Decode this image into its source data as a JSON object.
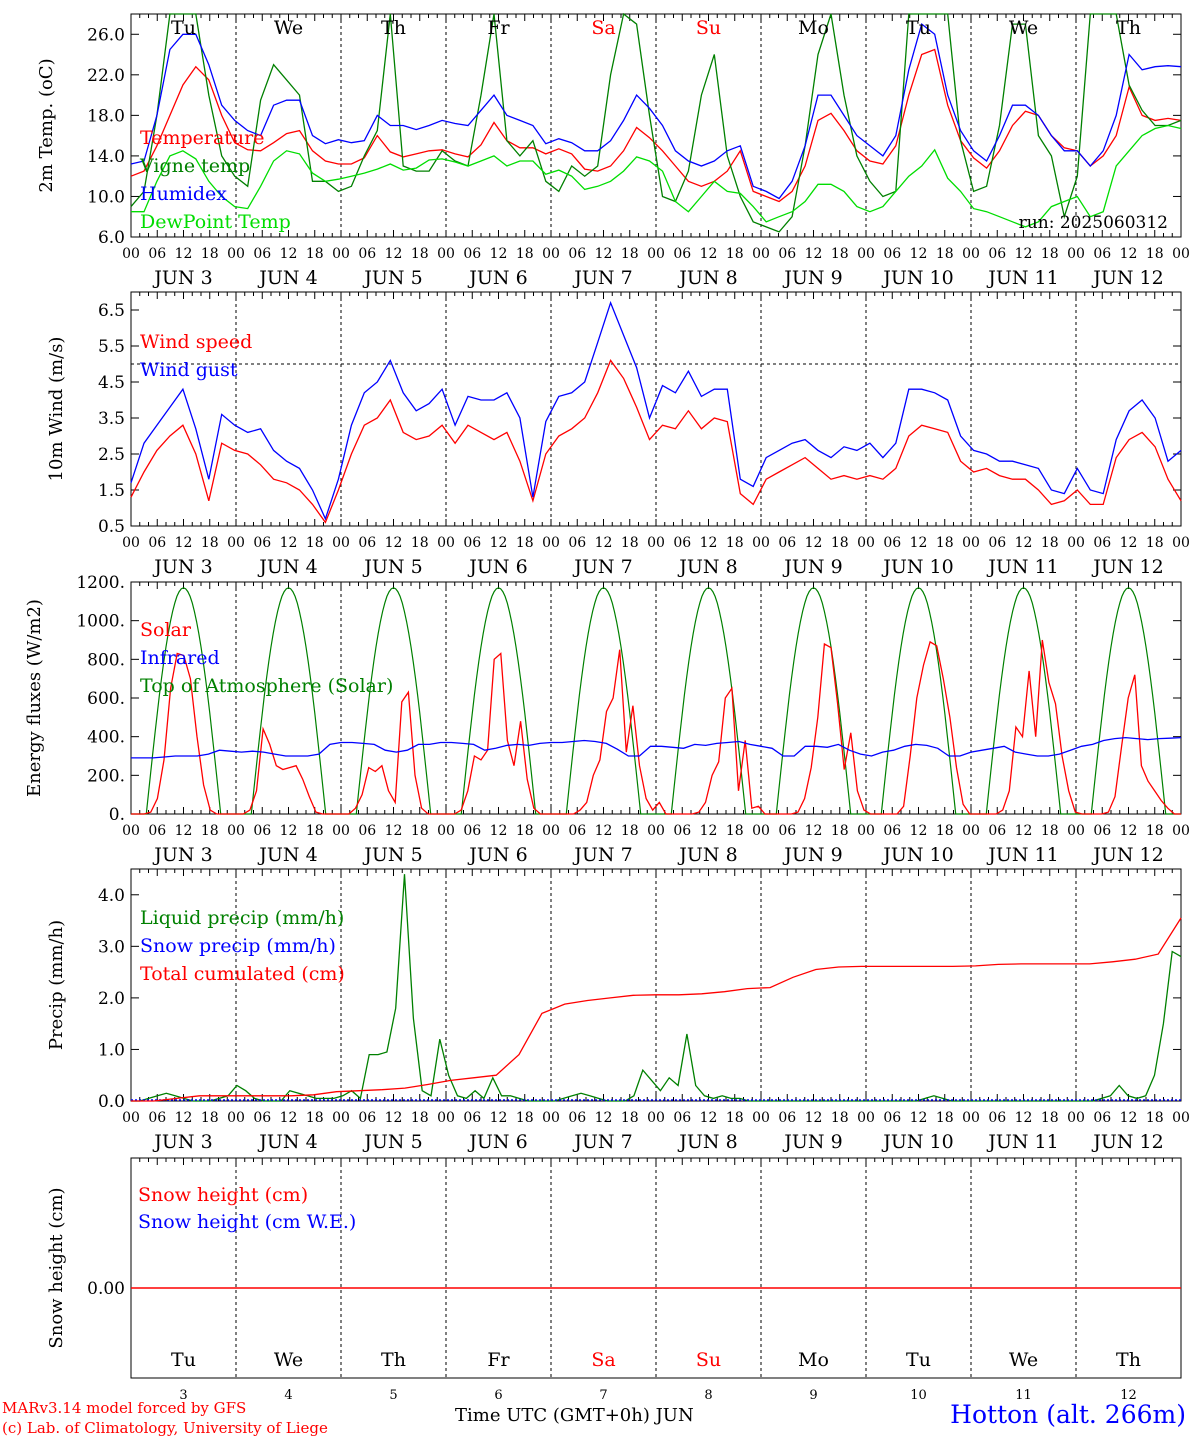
{
  "chart_data": [
    {
      "type": "line",
      "ylabel": "2m Temp. (oC)",
      "ylim": [
        6,
        28
      ],
      "yticks": [
        "6.0",
        "10.0",
        "14.0",
        "18.0",
        "22.0",
        "26.0"
      ],
      "run_label": "run: 2025060312",
      "series": [
        {
          "name": "Temperature",
          "color": "#ff0000",
          "values": [
            12,
            12.5,
            15,
            18,
            21,
            22.8,
            21.5,
            18,
            15.3,
            14.6,
            14.5,
            15.3,
            16.2,
            16.5,
            14.5,
            13.5,
            13.2,
            13.2,
            13.8,
            16,
            14.4,
            13.9,
            14.2,
            14.5,
            14.6,
            14.2,
            13.9,
            15.1,
            17.3,
            15.5,
            14.8,
            14.8,
            14.2,
            14.7,
            14.2,
            12.7,
            12.5,
            13,
            14.5,
            16.8,
            15.8,
            14.5,
            13,
            11.5,
            11,
            11.5,
            12.5,
            14.5,
            10.5,
            10,
            9.5,
            10.5,
            13,
            17.5,
            18.2,
            16.5,
            14.5,
            13.5,
            13.2,
            15,
            20,
            24,
            24.5,
            19,
            15.5,
            13.8,
            12.8,
            14.5,
            17,
            18.4,
            18,
            16,
            14.8,
            14.5,
            13,
            14,
            16,
            20.8,
            18,
            17.5,
            17.7,
            17.5
          ]
        },
        {
          "name": "Vigne temp",
          "color": "#008000",
          "values": [
            9,
            10.5,
            18,
            28,
            28,
            28,
            20,
            14,
            12,
            11,
            19.5,
            23,
            21.5,
            20,
            11.5,
            11.5,
            10.5,
            11,
            14,
            16.5,
            28,
            13,
            12.5,
            12.5,
            14.5,
            13.5,
            13,
            20,
            28,
            15.5,
            14,
            15.5,
            11.5,
            10.5,
            13,
            12,
            13,
            22,
            28,
            27,
            18,
            10,
            9.5,
            12.5,
            20,
            24,
            14,
            10,
            7.5,
            7,
            6.5,
            8,
            15,
            24,
            28,
            20,
            14,
            11.5,
            10,
            10.5,
            28,
            28,
            28,
            28,
            15.5,
            10.5,
            11,
            17,
            27,
            27,
            16,
            14,
            8,
            12,
            28,
            28,
            28,
            21,
            18.5,
            17,
            17,
            17.5
          ]
        },
        {
          "name": "Humidex",
          "color": "#0000ff",
          "values": [
            13.2,
            13.5,
            18,
            24.5,
            26,
            26,
            23,
            19,
            17.5,
            16.5,
            16,
            19,
            19.5,
            19.5,
            16,
            15.2,
            15.6,
            15.3,
            15.5,
            18,
            17,
            17,
            16.6,
            17,
            17.5,
            17.2,
            17,
            18.5,
            20,
            18,
            17.5,
            17,
            15.2,
            15.7,
            15.3,
            14.5,
            14.5,
            15.5,
            17.5,
            20,
            18.7,
            17,
            14.5,
            13.5,
            13,
            13.5,
            14.5,
            15,
            11,
            10.5,
            9.8,
            11.5,
            15,
            20,
            20,
            18,
            16,
            15,
            14,
            16,
            22.5,
            27,
            26,
            20,
            16.5,
            14.5,
            13.5,
            16,
            19,
            19,
            18,
            16,
            14.5,
            14.5,
            13,
            14.5,
            18,
            24,
            22.5,
            22.8,
            22.9,
            22.8
          ]
        },
        {
          "name": "DewPoint Temp",
          "color": "#00dd00",
          "values": [
            8.5,
            8.5,
            11.5,
            14,
            14.5,
            13.7,
            11.5,
            10,
            9,
            8.8,
            11,
            13.5,
            14.5,
            14.2,
            12.3,
            11.5,
            11.7,
            12,
            12.3,
            12.7,
            13.2,
            12.6,
            12.8,
            13.6,
            13.7,
            13.4,
            13,
            13.5,
            14,
            13,
            13.5,
            13.5,
            12.2,
            12.6,
            12,
            10.7,
            11,
            11.5,
            12.5,
            13.9,
            13.5,
            12.5,
            9.5,
            8.5,
            10,
            11.5,
            10.5,
            10.3,
            9,
            7.5,
            8,
            8.5,
            9.5,
            11.2,
            11.2,
            10.5,
            9,
            8.5,
            9,
            10.5,
            12,
            13,
            14.6,
            11.8,
            10.5,
            8.8,
            8.5,
            8,
            7.5,
            7,
            7.5,
            9,
            9.5,
            10,
            8,
            8.5,
            13,
            14.5,
            16,
            16.7,
            17,
            16.7
          ]
        }
      ]
    },
    {
      "type": "line",
      "ylabel": "10m Wind (m/s)",
      "ylim": [
        0.5,
        7
      ],
      "yticks": [
        "0.5",
        "1.5",
        "2.5",
        "3.5",
        "4.5",
        "5.5",
        "6.5"
      ],
      "reference_line": 5,
      "series": [
        {
          "name": "Wind speed",
          "color": "#ff0000",
          "values": [
            1.3,
            2,
            2.6,
            3,
            3.3,
            2.5,
            1.2,
            2.8,
            2.6,
            2.5,
            2.2,
            1.8,
            1.7,
            1.5,
            1.1,
            0.6,
            1.5,
            2.5,
            3.3,
            3.5,
            4,
            3.1,
            2.9,
            3,
            3.3,
            2.8,
            3.3,
            3.1,
            2.9,
            3.1,
            2.3,
            1.2,
            2.5,
            3,
            3.2,
            3.5,
            4.2,
            5.1,
            4.6,
            3.8,
            2.9,
            3.3,
            3.2,
            3.7,
            3.2,
            3.5,
            3.4,
            1.4,
            1.1,
            1.8,
            2,
            2.2,
            2.4,
            2.1,
            1.8,
            1.9,
            1.8,
            1.9,
            1.8,
            2.1,
            3,
            3.3,
            3.2,
            3.1,
            2.3,
            2,
            2.1,
            1.9,
            1.8,
            1.8,
            1.5,
            1.1,
            1.2,
            1.5,
            1.1,
            1.1,
            2.4,
            2.9,
            3.1,
            2.7,
            1.8,
            1.2
          ]
        },
        {
          "name": "Wind gust",
          "color": "#0000ff",
          "values": [
            1.7,
            2.8,
            3.3,
            3.8,
            4.3,
            3.2,
            1.8,
            3.6,
            3.3,
            3.1,
            3.2,
            2.6,
            2.3,
            2.1,
            1.5,
            0.7,
            1.8,
            3.3,
            4.2,
            4.5,
            5.1,
            4.2,
            3.7,
            3.9,
            4.3,
            3.3,
            4.1,
            4,
            4,
            4.2,
            3.5,
            1.3,
            3.4,
            4.1,
            4.2,
            4.5,
            5.6,
            6.7,
            5.8,
            4.9,
            3.5,
            4.4,
            4.2,
            4.8,
            4.1,
            4.3,
            4.3,
            1.8,
            1.6,
            2.4,
            2.6,
            2.8,
            2.9,
            2.6,
            2.4,
            2.7,
            2.6,
            2.8,
            2.4,
            2.8,
            4.3,
            4.3,
            4.2,
            4,
            3,
            2.6,
            2.5,
            2.3,
            2.3,
            2.2,
            2.1,
            1.5,
            1.4,
            2.1,
            1.5,
            1.4,
            2.9,
            3.7,
            4,
            3.5,
            2.3,
            2.6
          ]
        }
      ]
    },
    {
      "type": "line",
      "ylabel": "Energy fluxes (W/m2)",
      "ylim": [
        0,
        1200
      ],
      "yticks": [
        "0.",
        "200.",
        "400.",
        "600.",
        "800.",
        "1000.",
        "1200."
      ],
      "series": [
        {
          "name": "Solar",
          "color": "#ff0000",
          "values": [
            0,
            0,
            0,
            10,
            80,
            280,
            650,
            830,
            820,
            700,
            400,
            150,
            20,
            0,
            0,
            0,
            0,
            0,
            20,
            120,
            440,
            360,
            250,
            230,
            240,
            250,
            180,
            90,
            10,
            0,
            0,
            0,
            0,
            0,
            30,
            100,
            240,
            220,
            250,
            120,
            60,
            580,
            630,
            200,
            30,
            0,
            0,
            0,
            0,
            0,
            20,
            120,
            300,
            280,
            330,
            800,
            830,
            380,
            250,
            480,
            180,
            30,
            0,
            0,
            0,
            0,
            0,
            0,
            20,
            60,
            200,
            280,
            530,
            600,
            850,
            320,
            560,
            250,
            80,
            20,
            60,
            0,
            0,
            0,
            0,
            0,
            10,
            60,
            200,
            270,
            600,
            650,
            120,
            380,
            30,
            40,
            0,
            0,
            0,
            0,
            0,
            10,
            80,
            240,
            500,
            880,
            860,
            570,
            230,
            420,
            120,
            20,
            0,
            0,
            0,
            0,
            0,
            40,
            300,
            600,
            770,
            890,
            870,
            700,
            500,
            240,
            50,
            0,
            0,
            0,
            0,
            0,
            20,
            120,
            450,
            400,
            740,
            400,
            900,
            680,
            570,
            300,
            120,
            10,
            0,
            0,
            0,
            0,
            10,
            90,
            350,
            600,
            720,
            250,
            170,
            120,
            70,
            30,
            0,
            0
          ]
        },
        {
          "name": "Infrared",
          "color": "#0000ff",
          "values": [
            290,
            290,
            290,
            295,
            300,
            300,
            300,
            310,
            330,
            325,
            320,
            325,
            320,
            310,
            300,
            300,
            300,
            310,
            360,
            370,
            370,
            365,
            360,
            330,
            320,
            330,
            360,
            360,
            370,
            370,
            365,
            360,
            330,
            340,
            355,
            360,
            355,
            365,
            370,
            370,
            375,
            380,
            375,
            365,
            335,
            300,
            300,
            350,
            350,
            345,
            340,
            360,
            355,
            365,
            370,
            375,
            360,
            350,
            340,
            300,
            300,
            350,
            350,
            345,
            360,
            330,
            310,
            300,
            320,
            330,
            350,
            360,
            355,
            340,
            300,
            300,
            320,
            330,
            340,
            350,
            320,
            310,
            300,
            300,
            310,
            330,
            350,
            360,
            380,
            390,
            395,
            390,
            385,
            390,
            392,
            395
          ]
        },
        {
          "name": "Top of Atmosphere (Solar)",
          "color": "#008000",
          "peak": 1170
        }
      ]
    },
    {
      "type": "line",
      "ylabel": "Precip (mm/h)",
      "ylim": [
        0,
        4.5
      ],
      "yticks": [
        "0.0",
        "1.0",
        "2.0",
        "3.0",
        "4.0"
      ],
      "series": [
        {
          "name": "Liquid precip (mm/h)",
          "color": "#008000",
          "values": [
            0,
            0,
            0.05,
            0.1,
            0.15,
            0.1,
            0.05,
            0,
            0,
            0,
            0.05,
            0.1,
            0.3,
            0.2,
            0.05,
            0,
            0,
            0,
            0.2,
            0.15,
            0.1,
            0.05,
            0.05,
            0.05,
            0.1,
            0.2,
            0.05,
            0.9,
            0.9,
            0.95,
            1.8,
            4.4,
            1.6,
            0.2,
            0.1,
            1.2,
            0.5,
            0.1,
            0.05,
            0.2,
            0.05,
            0.45,
            0.1,
            0.1,
            0.05,
            0,
            0,
            0,
            0,
            0.05,
            0.1,
            0.15,
            0.1,
            0.05,
            0,
            0,
            0,
            0.1,
            0.6,
            0.4,
            0.2,
            0.45,
            0.3,
            1.3,
            0.3,
            0.1,
            0.05,
            0.1,
            0.05,
            0.05,
            0,
            0,
            0,
            0,
            0,
            0,
            0,
            0,
            0,
            0,
            0,
            0,
            0,
            0,
            0,
            0,
            0,
            0,
            0,
            0,
            0.05,
            0.1,
            0.05,
            0,
            0,
            0,
            0,
            0,
            0,
            0,
            0,
            0,
            0,
            0,
            0,
            0,
            0,
            0,
            0,
            0,
            0.05,
            0.1,
            0.3,
            0.1,
            0.05,
            0.1,
            0.5,
            1.5,
            2.9,
            2.8
          ]
        },
        {
          "name": "Snow precip (mm/h)",
          "color": "#0000ff",
          "values": [
            0
          ]
        },
        {
          "name": "Total cumulated (cm)",
          "color": "#ff0000",
          "values": [
            0,
            0,
            0.05,
            0.1,
            0.1,
            0.1,
            0.1,
            0.1,
            0.12,
            0.18,
            0.2,
            0.22,
            0.25,
            0.32,
            0.4,
            0.45,
            0.5,
            0.9,
            1.7,
            1.88,
            1.95,
            2,
            2.05,
            2.06,
            2.06,
            2.08,
            2.12,
            2.18,
            2.2,
            2.4,
            2.55,
            2.6,
            2.61,
            2.61,
            2.61,
            2.61,
            2.61,
            2.62,
            2.65,
            2.66,
            2.66,
            2.66,
            2.66,
            2.7,
            2.75,
            2.85,
            3.55
          ]
        }
      ]
    },
    {
      "type": "line",
      "ylabel": "Snow height (cm)",
      "yticks": [
        "0.00"
      ],
      "series": [
        {
          "name": "Snow height (cm)",
          "color": "#ff0000",
          "values": [
            0,
            0
          ]
        },
        {
          "name": "Snow height (cm W.E.)",
          "color": "#0000ff",
          "values": [
            0,
            0
          ]
        }
      ]
    }
  ],
  "x_axis": {
    "hour_ticks": [
      "00",
      "06",
      "12",
      "18"
    ],
    "end_tick": "00",
    "dates": [
      "JUN  3",
      "JUN  4",
      "JUN  5",
      "JUN  6",
      "JUN  7",
      "JUN  8",
      "JUN  9",
      "JUN 10",
      "JUN 11",
      "JUN 12"
    ],
    "days": [
      {
        "label": "Tu",
        "color": "#000000"
      },
      {
        "label": "We",
        "color": "#000000"
      },
      {
        "label": "Th",
        "color": "#000000"
      },
      {
        "label": "Fr",
        "color": "#000000"
      },
      {
        "label": "Sa",
        "color": "#ff0000"
      },
      {
        "label": "Su",
        "color": "#ff0000"
      },
      {
        "label": "Mo",
        "color": "#000000"
      },
      {
        "label": "Tu",
        "color": "#000000"
      },
      {
        "label": "We",
        "color": "#000000"
      },
      {
        "label": "Th",
        "color": "#000000"
      }
    ],
    "day_numbers": [
      "3",
      "4",
      "5",
      "6",
      "7",
      "8",
      "9",
      "10",
      "11",
      "12"
    ],
    "title": "Time UTC (GMT+0h) JUN"
  },
  "footer": {
    "model": "MARv3.14 model forced by GFS",
    "credit": "(c) Lab. of Climatology, University of Liege",
    "station": "Hotton (alt. 266m)"
  }
}
